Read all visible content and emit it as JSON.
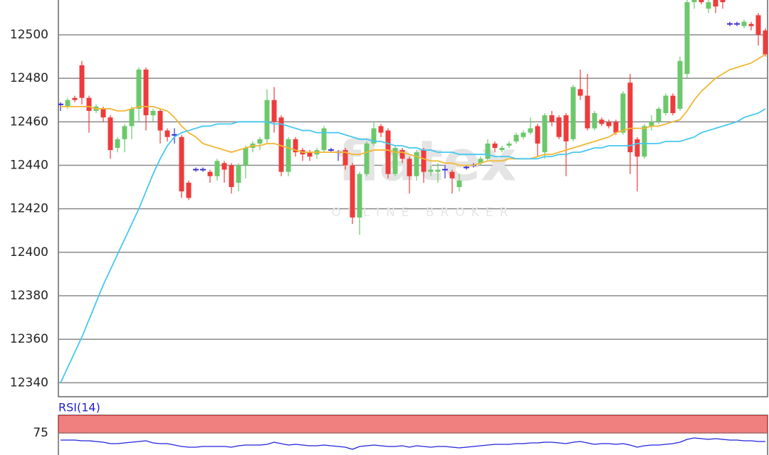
{
  "chart_data": [
    {
      "type": "candlestick",
      "watermark": {
        "logo": "flatex",
        "tagline": "ONLINE BROKER"
      },
      "ylim": [
        12333.6,
        12516
      ],
      "yticks": [
        12340,
        12360,
        12380,
        12400,
        12420,
        12440,
        12460,
        12480,
        12500
      ],
      "grid": true,
      "up_color": "#6cc86c",
      "down_color": "#ee3b3b",
      "doji_color": "#3a2bd6",
      "open": [
        12468,
        12467,
        12471,
        12486,
        12471,
        12465,
        12466,
        12462,
        12448,
        12452,
        12458,
        12466,
        12484,
        12463,
        12465,
        12456,
        12454,
        12453,
        12432,
        12438,
        12438,
        12437,
        12435,
        12441,
        12440,
        12432,
        12440,
        12448,
        12450,
        12452,
        12470,
        12462,
        12437,
        12452,
        12447,
        12446,
        12445,
        12447,
        12447,
        12446,
        12447,
        12440,
        12416,
        12436,
        12450,
        12458,
        12456,
        12436,
        12447,
        12443,
        12435,
        12447,
        12437,
        12437,
        12438,
        12437,
        12430,
        12439,
        12440,
        12441,
        12443,
        12450,
        12447,
        12449,
        12451,
        12453,
        12455,
        12458,
        12446,
        12463,
        12462,
        12463,
        12452,
        12475,
        12472,
        12457,
        12461,
        12460,
        12460,
        12455,
        12478,
        12452,
        12444,
        12458,
        12460,
        12464,
        12472,
        12466,
        12482,
        12515,
        12517,
        12512,
        12516,
        12516,
        12505,
        12505,
        12504,
        12505,
        12509,
        12502
      ],
      "high": [
        12469,
        12471,
        12472,
        12488,
        12472,
        12468,
        12467,
        12463,
        12453,
        12459,
        12467,
        12485,
        12485,
        12466,
        12466,
        12457,
        12457,
        12454,
        12433,
        12439,
        12439,
        12438,
        12443,
        12442,
        12441,
        12441,
        12449,
        12451,
        12453,
        12475,
        12476,
        12463,
        12453,
        12453,
        12448,
        12447,
        12448,
        12458,
        12448,
        12447,
        12448,
        12441,
        12437,
        12451,
        12460,
        12459,
        12457,
        12449,
        12448,
        12444,
        12447,
        12448,
        12440,
        12441,
        12440,
        12438,
        12436,
        12440,
        12441,
        12444,
        12452,
        12451,
        12449,
        12451,
        12455,
        12456,
        12462,
        12459,
        12464,
        12465,
        12463,
        12464,
        12477,
        12484,
        12482,
        12465,
        12462,
        12461,
        12461,
        12474,
        12482,
        12453,
        12459,
        12463,
        12467,
        12473,
        12473,
        12490,
        12517,
        12519,
        12519,
        12518,
        12517,
        12518,
        12506,
        12506,
        12507,
        12506,
        12510,
        12503
      ],
      "low": [
        12465,
        12466,
        12469,
        12468,
        12455,
        12464,
        12460,
        12443,
        12446,
        12446,
        12452,
        12460,
        12456,
        12460,
        12450,
        12451,
        12450,
        12425,
        12424,
        12437,
        12437,
        12432,
        12433,
        12432,
        12427,
        12428,
        12434,
        12446,
        12447,
        12450,
        12455,
        12435,
        12435,
        12444,
        12442,
        12442,
        12443,
        12446,
        12446,
        12442,
        12438,
        12413,
        12408,
        12435,
        12449,
        12453,
        12434,
        12435,
        12441,
        12427,
        12433,
        12432,
        12435,
        12432,
        12434,
        12427,
        12428,
        12438,
        12439,
        12440,
        12442,
        12446,
        12446,
        12448,
        12450,
        12452,
        12454,
        12444,
        12443,
        12458,
        12452,
        12435,
        12451,
        12470,
        12456,
        12456,
        12458,
        12457,
        12454,
        12454,
        12436,
        12428,
        12443,
        12456,
        12459,
        12463,
        12463,
        12465,
        12480,
        12512,
        12514,
        12510,
        12510,
        12512,
        12504,
        12504,
        12503,
        12502,
        12495,
        12490
      ],
      "close": [
        12468,
        12470,
        12470,
        12471,
        12465,
        12467,
        12462,
        12447,
        12452,
        12458,
        12466,
        12484,
        12463,
        12465,
        12456,
        12453,
        12454,
        12428,
        12425,
        12438,
        12438,
        12435,
        12442,
        12438,
        12430,
        12440,
        12448,
        12450,
        12452,
        12470,
        12460,
        12437,
        12452,
        12446,
        12445,
        12444,
        12447,
        12457,
        12447,
        12446,
        12440,
        12416,
        12436,
        12450,
        12457,
        12455,
        12436,
        12448,
        12443,
        12435,
        12446,
        12437,
        12438,
        12438,
        12438,
        12434,
        12433,
        12439,
        12440,
        12443,
        12450,
        12448,
        12448,
        12450,
        12454,
        12455,
        12457,
        12450,
        12463,
        12460,
        12453,
        12451,
        12476,
        12472,
        12457,
        12464,
        12459,
        12458,
        12455,
        12473,
        12446,
        12444,
        12458,
        12460,
        12466,
        12472,
        12464,
        12488,
        12515,
        12517,
        12515,
        12515,
        12513,
        12515,
        12505,
        12505,
        12506,
        12504,
        12500,
        12491
      ],
      "series": [
        {
          "color": "#f2b632",
          "values": [
            12467,
            12467,
            12467,
            12467,
            12467,
            12466,
            12466,
            12466,
            12465,
            12465,
            12466,
            12467,
            12467,
            12467,
            12466,
            12465,
            12462,
            12458,
            12455,
            12453,
            12450,
            12449,
            12448,
            12447,
            12446,
            12447,
            12448,
            12449,
            12449,
            12450,
            12450,
            12449,
            12448,
            12447,
            12446,
            12446,
            12446,
            12446,
            12446,
            12446,
            12446,
            12445,
            12445,
            12446,
            12447,
            12447,
            12447,
            12446,
            12446,
            12445,
            12444,
            12443,
            12442,
            12442,
            12441,
            12441,
            12440,
            12440,
            12440,
            12441,
            12442,
            12442,
            12442,
            12443,
            12443,
            12443,
            12443,
            12444,
            12445,
            12445,
            12446,
            12447,
            12448,
            12449,
            12450,
            12451,
            12452,
            12453,
            12455,
            12456,
            12457,
            12457,
            12457,
            12458,
            12458,
            12459,
            12460,
            12461,
            12465,
            12470,
            12474,
            12477,
            12480,
            12482,
            12484,
            12485,
            12486,
            12487,
            12489,
            12491
          ]
        },
        {
          "color": "#46c8f0",
          "values": [
            12340,
            12347,
            12354,
            12361,
            12369,
            12377,
            12385,
            12392,
            12399,
            12406,
            12413,
            12420,
            12428,
            12436,
            12443,
            12449,
            12453,
            12455,
            12456,
            12457,
            12458,
            12458,
            12459,
            12459,
            12459,
            12460,
            12460,
            12460,
            12460,
            12460,
            12459,
            12459,
            12458,
            12457,
            12456,
            12456,
            12455,
            12455,
            12455,
            12455,
            12454,
            12453,
            12452,
            12452,
            12451,
            12451,
            12450,
            12449,
            12449,
            12448,
            12448,
            12447,
            12447,
            12446,
            12446,
            12446,
            12445,
            12445,
            12445,
            12445,
            12445,
            12444,
            12444,
            12444,
            12443,
            12443,
            12443,
            12443,
            12444,
            12444,
            12445,
            12445,
            12446,
            12446,
            12447,
            12448,
            12448,
            12449,
            12449,
            12449,
            12449,
            12450,
            12450,
            12450,
            12450,
            12451,
            12451,
            12451,
            12452,
            12453,
            12455,
            12456,
            12457,
            12458,
            12459,
            12460,
            12462,
            12463,
            12464,
            12466
          ]
        }
      ]
    },
    {
      "type": "line",
      "title": "RSI(14)",
      "ylim": [
        44,
        100
      ],
      "yticks": [
        75
      ],
      "band": [
        75,
        100
      ],
      "band_color": "#f08080",
      "color": "#2222dd",
      "values": [
        65,
        65,
        65,
        64,
        64,
        63,
        62,
        60,
        60,
        61,
        62,
        63,
        64,
        61,
        60,
        60,
        58,
        56,
        55,
        55,
        56,
        56,
        56,
        56,
        55,
        57,
        58,
        58,
        58,
        59,
        62,
        60,
        58,
        59,
        58,
        57,
        57,
        58,
        57,
        56,
        55,
        52,
        56,
        57,
        58,
        57,
        56,
        56,
        57,
        55,
        57,
        56,
        55,
        56,
        56,
        55,
        54,
        55,
        56,
        57,
        58,
        59,
        59,
        59,
        60,
        60,
        61,
        61,
        62,
        62,
        61,
        60,
        62,
        63,
        61,
        59,
        60,
        60,
        59,
        60,
        58,
        55,
        57,
        58,
        58,
        59,
        60,
        62,
        66,
        68,
        67,
        66,
        67,
        66,
        65,
        65,
        64,
        64,
        63,
        63
      ]
    }
  ]
}
